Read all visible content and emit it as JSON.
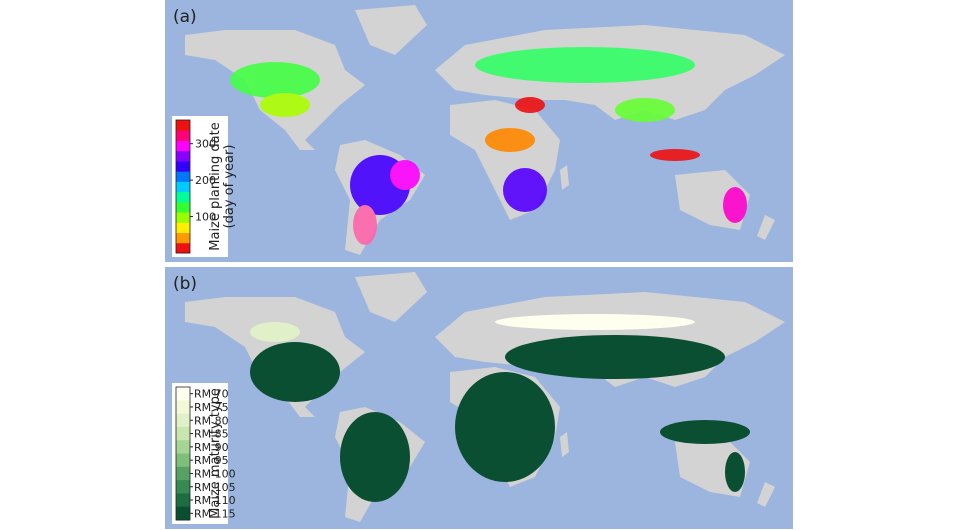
{
  "panels": [
    {
      "label": "(a)",
      "colorbar": {
        "title": [
          "Maize planting date",
          "(day of year)"
        ],
        "lim": [
          0,
          365
        ],
        "ticks": [
          100,
          200,
          300
        ],
        "colors": [
          "#ee1111",
          "#ff9900",
          "#ffee00",
          "#99ff00",
          "#33ff33",
          "#00ff99",
          "#00ccff",
          "#0077ff",
          "#3300ff",
          "#8800ff",
          "#ff00ff",
          "#ff0077",
          "#ee1111"
        ]
      }
    },
    {
      "label": "(b)",
      "colorbar": {
        "title": [
          "Maize maturity type"
        ],
        "labels": [
          "RM 70",
          "RM 75",
          "RM 80",
          "RM 85",
          "RM 90",
          "RM 95",
          "RM 100",
          "RM 105",
          "RM 110",
          "RM 115"
        ],
        "colors": [
          "#fffff0",
          "#f2f8d8",
          "#e0f0c8",
          "#c8e6b0",
          "#a5d495",
          "#7fbf7b",
          "#56a264",
          "#368a52",
          "#1c6e42",
          "#0b4f33"
        ]
      }
    }
  ]
}
